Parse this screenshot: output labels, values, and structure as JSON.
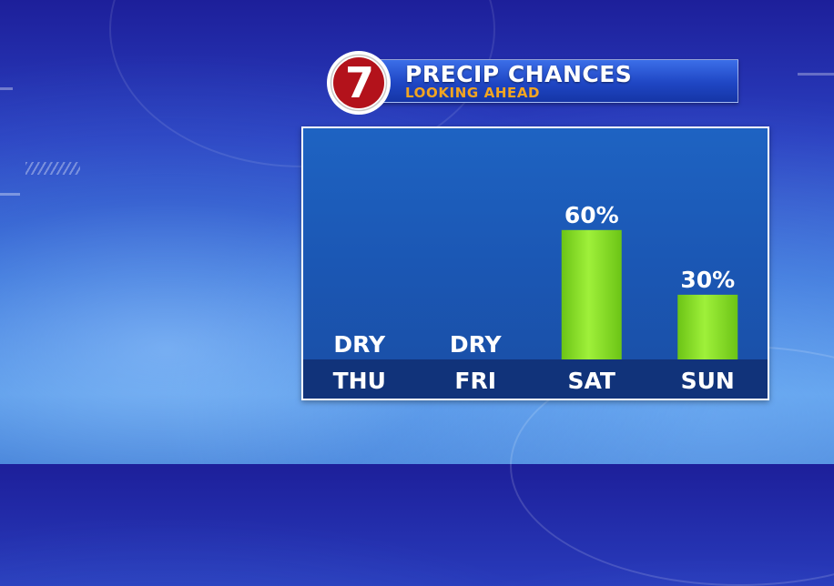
{
  "header": {
    "title": "PRECIP CHANCES",
    "subtitle": "LOOKING AHEAD",
    "logo_text": "7"
  },
  "colors": {
    "bar": "#86e01e",
    "banner_subtitle": "#f3a521",
    "logo_red": "#b3121b"
  },
  "chart_data": {
    "type": "bar",
    "categories": [
      "THU",
      "FRI",
      "SAT",
      "SUN"
    ],
    "values": [
      0,
      0,
      60,
      30
    ],
    "value_labels": [
      "DRY",
      "DRY",
      "60%",
      "30%"
    ],
    "title": "PRECIP CHANCES",
    "subtitle": "LOOKING AHEAD",
    "ylim": [
      0,
      100
    ],
    "grid": false
  }
}
